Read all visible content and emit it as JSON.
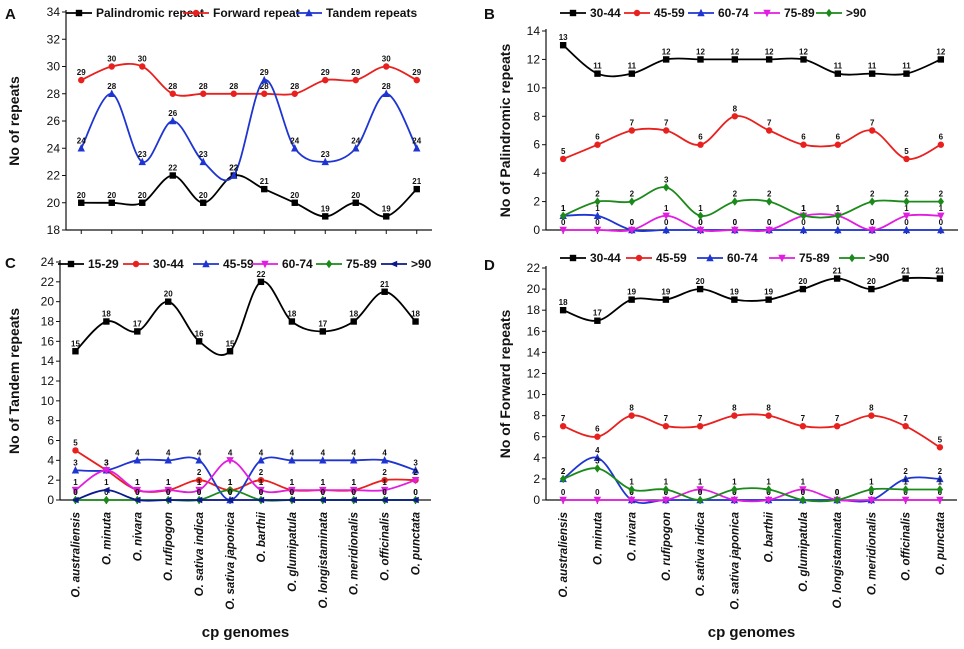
{
  "figure": {
    "x_title": "cp genomes",
    "categories": [
      "O. australiensis",
      "O. minuta",
      "O. nivara",
      "O. rufipogon",
      "O. sativa indica",
      "O. sativa japonica",
      "O. barthii",
      "O. glumipatula",
      "O. longistaminata",
      "O. meridionalis",
      "O. officinalis",
      "O. punctata"
    ]
  },
  "chart_data": [
    {
      "type": "line",
      "panel_label": "A",
      "ylabel": "No of repeats",
      "xlabel": "",
      "ylim": [
        18,
        34
      ],
      "yticks": [
        18,
        20,
        22,
        24,
        26,
        28,
        30,
        32,
        34
      ],
      "series": [
        {
          "name": "Palindromic repeat",
          "color": "#000000",
          "marker": "square",
          "values": [
            20,
            20,
            20,
            22,
            20,
            22,
            21,
            20,
            19,
            20,
            19,
            21
          ]
        },
        {
          "name": "Forward repeat",
          "color": "#e8201e",
          "marker": "circle",
          "values": [
            29,
            30,
            30,
            28,
            28,
            28,
            28,
            28,
            29,
            29,
            30,
            29
          ]
        },
        {
          "name": "Tandem repeats",
          "color": "#1f35d1",
          "marker": "triangle",
          "values": [
            24,
            28,
            23,
            26,
            23,
            22,
            29,
            24,
            23,
            24,
            28,
            24
          ]
        }
      ]
    },
    {
      "type": "line",
      "panel_label": "B",
      "ylabel": "No of Palindromic repeats",
      "xlabel": "",
      "ylim": [
        0,
        14
      ],
      "yticks": [
        0,
        2,
        4,
        6,
        8,
        10,
        12,
        14
      ],
      "series": [
        {
          "name": "30-44",
          "color": "#000000",
          "marker": "square",
          "values": [
            13,
            11,
            11,
            12,
            12,
            12,
            12,
            12,
            11,
            11,
            11,
            12
          ]
        },
        {
          "name": "45-59",
          "color": "#e8201e",
          "marker": "circle",
          "values": [
            5,
            6,
            7,
            7,
            6,
            8,
            7,
            6,
            6,
            7,
            5,
            6
          ]
        },
        {
          "name": "60-74",
          "color": "#1f35d1",
          "marker": "triangle",
          "values": [
            1,
            1,
            0,
            0,
            0,
            0,
            0,
            0,
            0,
            0,
            0,
            0
          ]
        },
        {
          "name": "75-89",
          "color": "#e11de0",
          "marker": "tri-down",
          "values": [
            0,
            0,
            0,
            1,
            0,
            0,
            0,
            1,
            1,
            0,
            1,
            1
          ]
        },
        {
          "name": ">90",
          "color": "#1b8a1b",
          "marker": "diamond",
          "values": [
            1,
            2,
            2,
            3,
            1,
            2,
            2,
            1,
            1,
            2,
            2,
            2
          ]
        }
      ]
    },
    {
      "type": "line",
      "panel_label": "C",
      "ylabel": "No of Tandem repeats",
      "xlabel": "",
      "ylim": [
        0,
        24
      ],
      "yticks": [
        0,
        2,
        4,
        6,
        8,
        10,
        12,
        14,
        16,
        18,
        20,
        22,
        24
      ],
      "series": [
        {
          "name": "15-29",
          "color": "#000000",
          "marker": "square",
          "values": [
            15,
            18,
            17,
            20,
            16,
            15,
            22,
            18,
            17,
            18,
            21,
            18
          ]
        },
        {
          "name": "30-44",
          "color": "#e8201e",
          "marker": "circle",
          "values": [
            5,
            3,
            1,
            1,
            2,
            1,
            2,
            1,
            1,
            1,
            2,
            2
          ]
        },
        {
          "name": "45-59",
          "color": "#1f35d1",
          "marker": "triangle",
          "values": [
            3,
            3,
            4,
            4,
            4,
            0,
            4,
            4,
            4,
            4,
            4,
            3
          ]
        },
        {
          "name": "60-74",
          "color": "#e11de0",
          "marker": "tri-down",
          "values": [
            1,
            3,
            1,
            1,
            1,
            4,
            1,
            1,
            1,
            1,
            1,
            2
          ]
        },
        {
          "name": "75-89",
          "color": "#1b8a1b",
          "marker": "diamond",
          "values": [
            0,
            0,
            0,
            0,
            0,
            1,
            0,
            0,
            0,
            0,
            0,
            0
          ]
        },
        {
          "name": ">90",
          "color": "#0a1a8a",
          "marker": "tri-left",
          "values": [
            0,
            1,
            0,
            0,
            0,
            0,
            0,
            0,
            0,
            0,
            0,
            0
          ]
        }
      ]
    },
    {
      "type": "line",
      "panel_label": "D",
      "ylabel": "No of Forward repeats",
      "xlabel": "",
      "ylim": [
        0,
        22
      ],
      "yticks": [
        0,
        2,
        4,
        6,
        8,
        10,
        12,
        14,
        16,
        18,
        20,
        22
      ],
      "series": [
        {
          "name": "30-44",
          "color": "#000000",
          "marker": "square",
          "values": [
            18,
            17,
            19,
            19,
            20,
            19,
            19,
            20,
            21,
            20,
            21,
            21
          ]
        },
        {
          "name": "45-59",
          "color": "#e8201e",
          "marker": "circle",
          "values": [
            7,
            6,
            8,
            7,
            7,
            8,
            8,
            7,
            7,
            8,
            7,
            5
          ]
        },
        {
          "name": "60-74",
          "color": "#1f35d1",
          "marker": "triangle",
          "values": [
            2,
            4,
            0,
            0,
            0,
            0,
            0,
            0,
            0,
            0,
            2,
            2
          ]
        },
        {
          "name": "75-89",
          "color": "#e11de0",
          "marker": "tri-down",
          "values": [
            0,
            0,
            0,
            0,
            1,
            0,
            0,
            1,
            0,
            0,
            0,
            0
          ]
        },
        {
          "name": ">90",
          "color": "#1b8a1b",
          "marker": "diamond",
          "values": [
            2,
            3,
            1,
            1,
            0,
            1,
            1,
            0,
            0,
            1,
            1,
            1
          ]
        }
      ]
    }
  ]
}
